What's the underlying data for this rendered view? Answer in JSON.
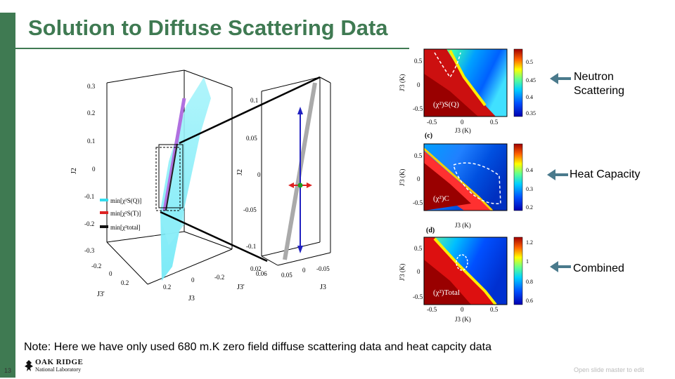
{
  "slide": {
    "title": "Solution to Diffuse Scattering Data",
    "page_number": "13",
    "footer": "Open slide master to edit",
    "note": "Note: Here we have only used 680 m.K zero field diffuse scattering data and heat capcity data",
    "logo": {
      "line1": "OAK RIDGE",
      "line2": "National Laboratory"
    }
  },
  "callouts": {
    "neutron_1": "Neutron",
    "neutron_2": "Scattering",
    "heat": "Heat Capacity",
    "combined": "Combined"
  },
  "figure3d": {
    "legend": [
      "min[χ²S(Q)]",
      "min[χ²S(T)]",
      "min[χ²total]"
    ],
    "legend_colors": [
      "#33ddee",
      "#dd2222",
      "#111111"
    ],
    "axis_j2_label": "J2",
    "axis_j3p_label": "J3'",
    "axis_j3_label": "J3",
    "left_y_ticks": [
      "0.3",
      "0.2",
      "0.1",
      "0",
      "-0.1",
      "-0.2",
      "-0.3"
    ],
    "left_j3p_ticks": [
      "-0.2",
      "0",
      "0.2"
    ],
    "left_j3_ticks": [
      "0.2",
      "0",
      "-0.2"
    ],
    "zoom_y_ticks": [
      "0.1",
      "0.05",
      "0",
      "-0.05",
      "-0.1"
    ],
    "zoom_j3p_ticks": [
      "0.02",
      "0.06",
      "0.05",
      "0",
      "-0.05"
    ]
  },
  "heatmaps": [
    {
      "panel": "(c)",
      "label": "(χ²)S(Q)",
      "colorbar": [
        "0.5",
        "0.45",
        "0.4",
        "0.35"
      ]
    },
    {
      "panel": "(d)",
      "label": "(χ²)C",
      "colorbar": [
        "0.4",
        "0.3",
        "0.2"
      ]
    },
    {
      "panel": "",
      "label": "(χ²)Total",
      "colorbar": [
        "1.2",
        "1",
        "0.8",
        "0.6"
      ]
    }
  ],
  "heatmap_axes": {
    "ylabel": "J'3 (K)",
    "xlabel": "J3 (K)",
    "yticks": [
      "0.5",
      "0",
      "-0.5"
    ],
    "xticks": [
      "-0.5",
      "0",
      "0.5"
    ]
  },
  "colors": {
    "accent": "#3f7a52",
    "arrow": "#4a7a8c"
  }
}
